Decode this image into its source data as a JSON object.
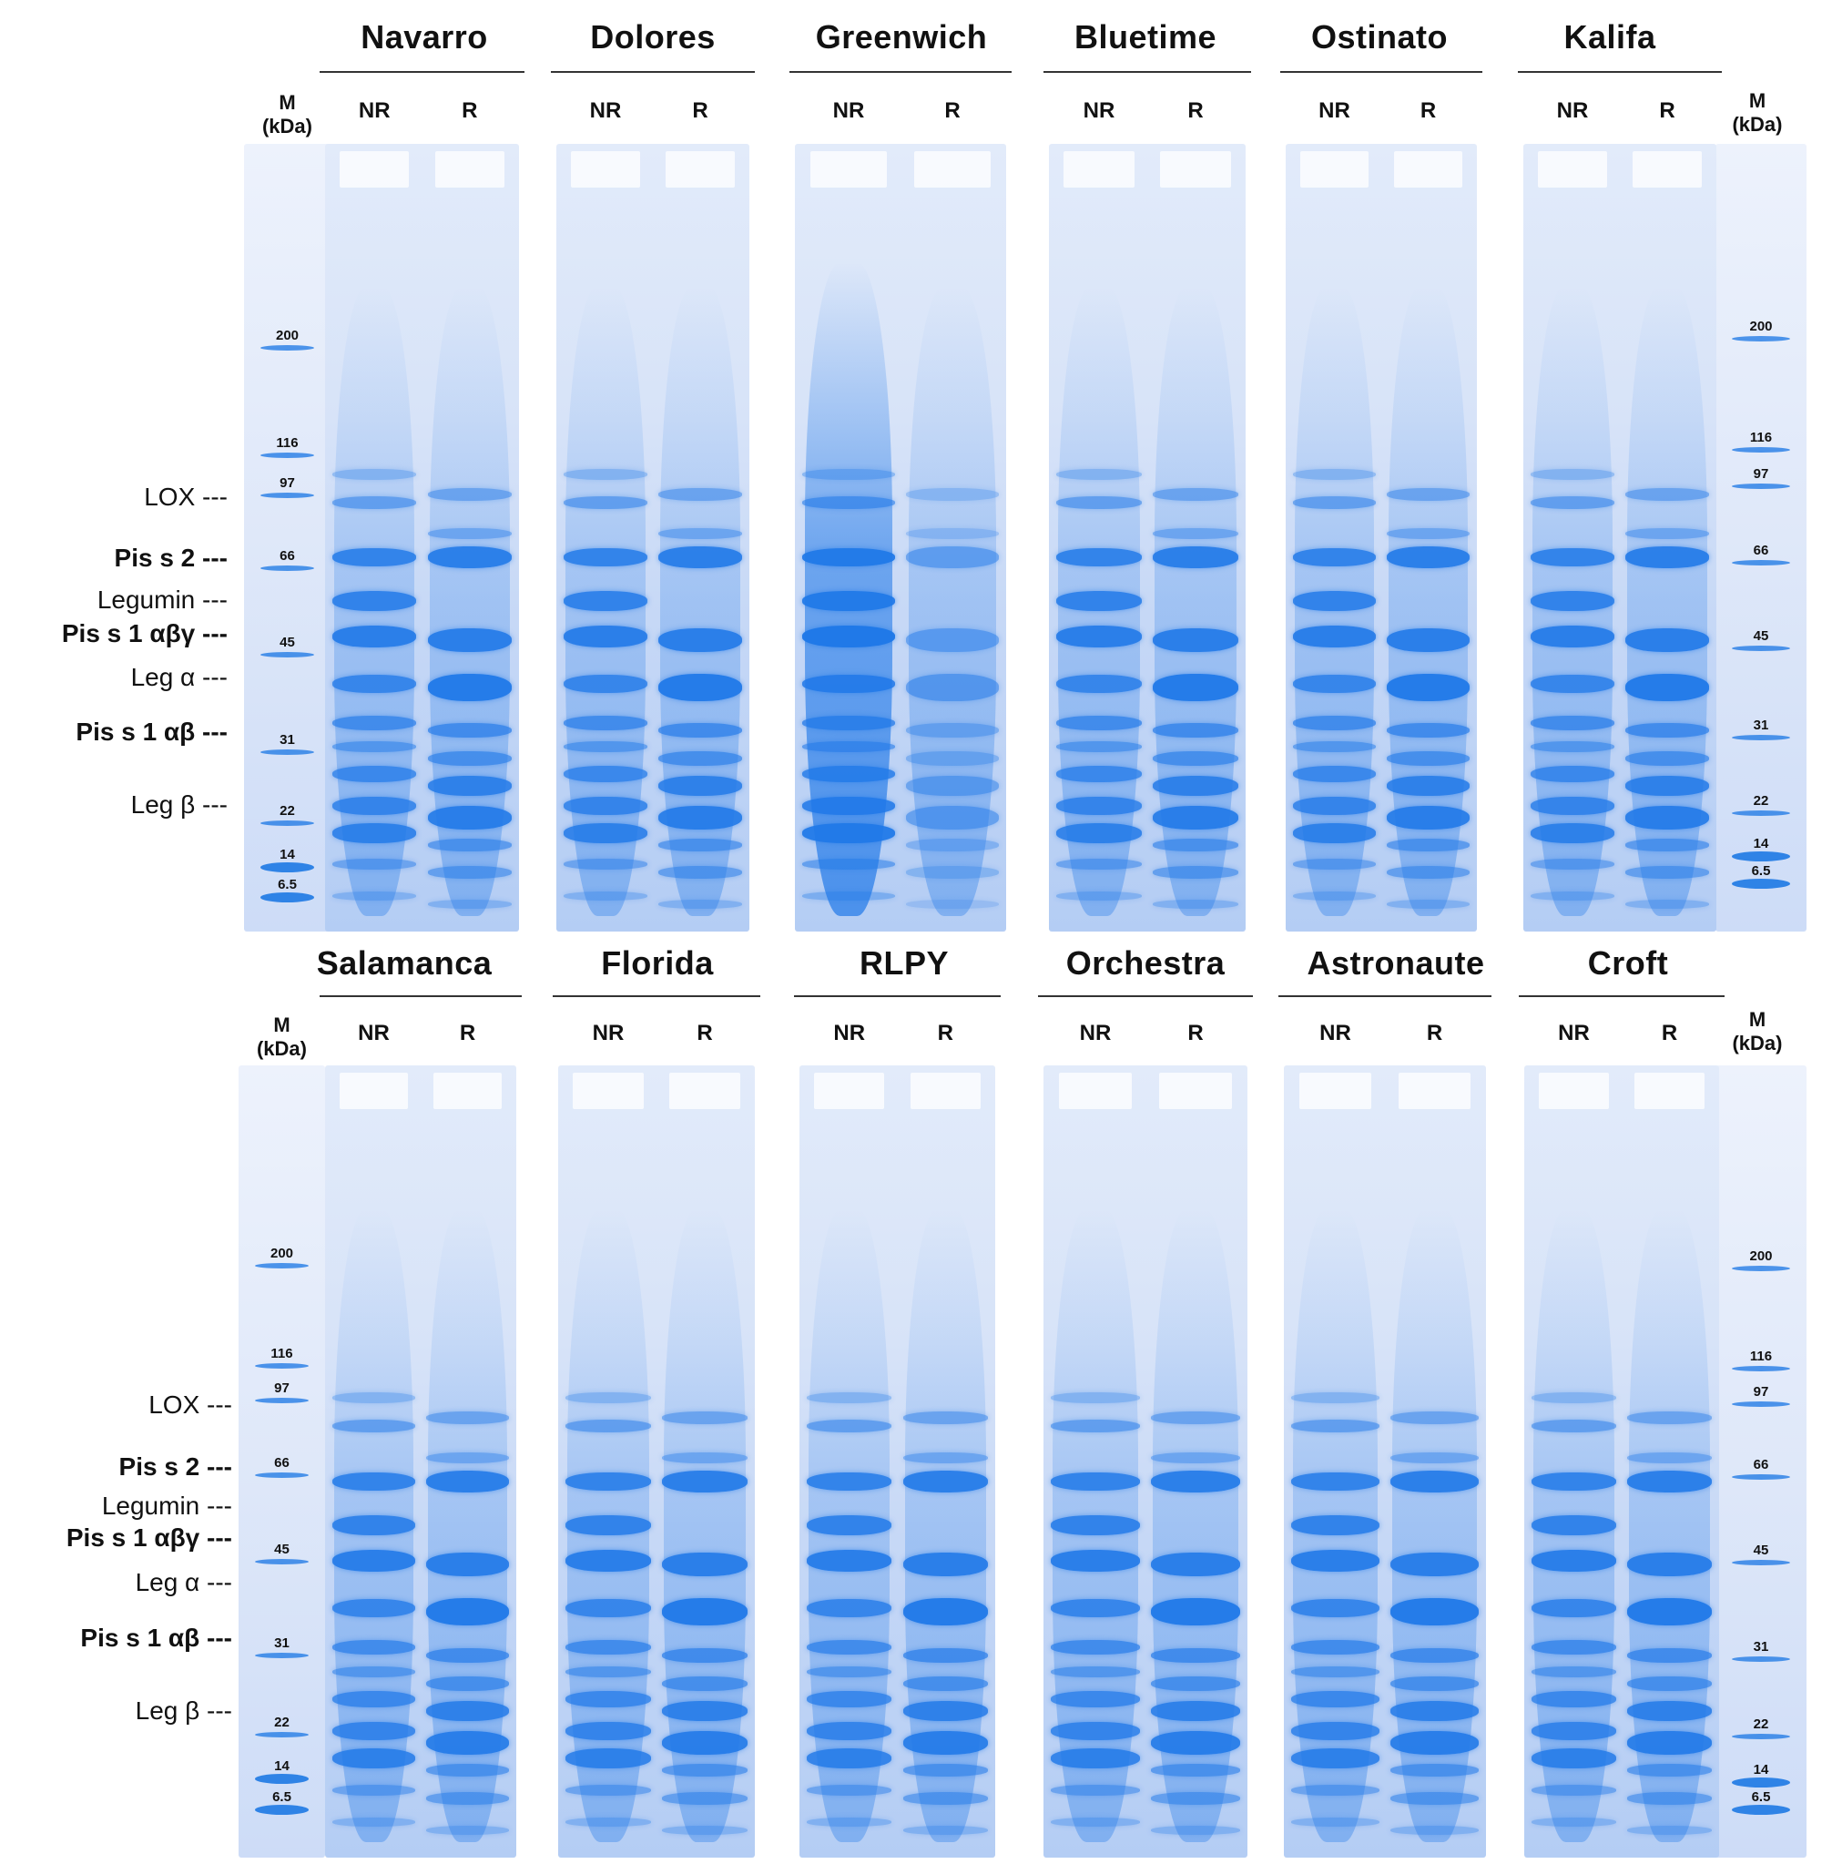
{
  "panels": [
    {
      "id": "top",
      "varieties": [
        "Navarro",
        "Dolores",
        "Greenwich",
        "Bluetime",
        "Ostinato",
        "Kalifa"
      ],
      "right_marker_labels": [
        "200",
        "116",
        "97",
        "66",
        "45",
        "31",
        "22",
        "14",
        "6.5"
      ]
    },
    {
      "id": "bottom",
      "varieties": [
        "Salamanca",
        "Florida",
        "RLPY",
        "Orchestra",
        "Astronaute",
        "Croft"
      ],
      "right_marker_labels": [
        "200",
        "116",
        "97",
        "66",
        "45",
        "31",
        "22",
        "14",
        "6.5"
      ]
    }
  ],
  "lane_labels": {
    "nr": "NR",
    "r": "R"
  },
  "marker": {
    "line1": "M",
    "line2": "(kDa)",
    "labels": [
      "200",
      "116",
      "97",
      "66",
      "45",
      "31",
      "22",
      "14",
      "6.5"
    ]
  },
  "proteins": [
    {
      "text": "LOX ---",
      "bold": false
    },
    {
      "text": "Pis s 2 ---",
      "bold": true
    },
    {
      "text": "Legumin ---",
      "bold": false
    },
    {
      "text": "Pis s 1 αβγ ---",
      "bold": true
    },
    {
      "text": "Leg α ---",
      "bold": false
    },
    {
      "text": "Pis s 1 αβ ---",
      "bold": true
    },
    {
      "text": "Leg β ---",
      "bold": false
    }
  ],
  "colors": {
    "stain": "#1f78e8",
    "gel_light": "#dfe8f9",
    "text": "#111111"
  }
}
